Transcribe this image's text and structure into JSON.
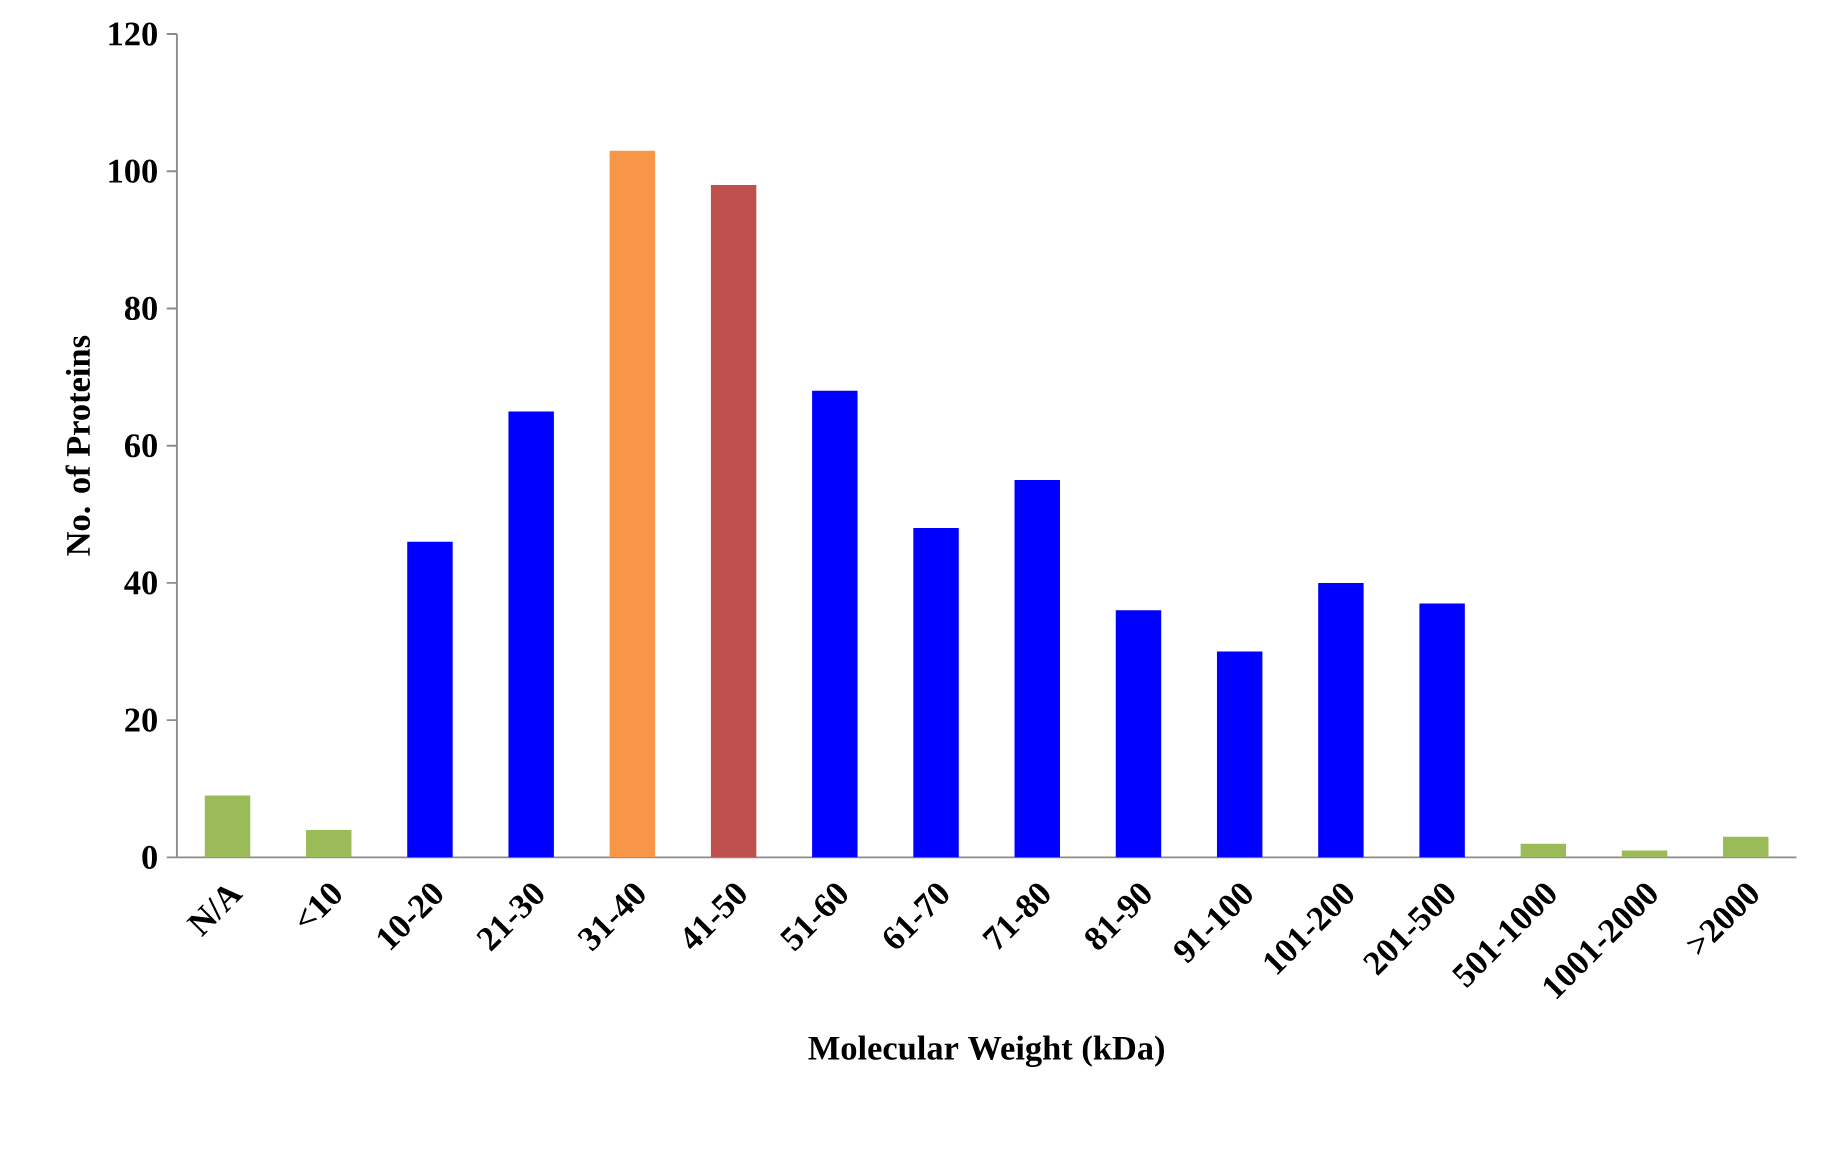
{
  "chart_data": {
    "type": "bar",
    "xlabel": "Molecular Weight (kDa)",
    "ylabel": "No. of Proteins",
    "categories": [
      "N/A",
      "<10",
      "10-20",
      "21-30",
      "31-40",
      "41-50",
      "51-60",
      "61-70",
      "71-80",
      "81-90",
      "91-100",
      "101-200",
      "201-500",
      "501-1000",
      "1001-2000",
      ">2000"
    ],
    "values": [
      9,
      4,
      46,
      65,
      103,
      98,
      68,
      48,
      55,
      36,
      30,
      40,
      37,
      2,
      1,
      3
    ],
    "colors": [
      "#9bbb59",
      "#9bbb59",
      "#0000ff",
      "#0000ff",
      "#f79646",
      "#c0504d",
      "#0000ff",
      "#0000ff",
      "#0000ff",
      "#0000ff",
      "#0000ff",
      "#0000ff",
      "#0000ff",
      "#9bbb59",
      "#9bbb59",
      "#9bbb59"
    ],
    "ylim": [
      0,
      120
    ],
    "yticks": [
      0,
      20,
      40,
      60,
      80,
      100,
      120
    ],
    "grid": false
  }
}
